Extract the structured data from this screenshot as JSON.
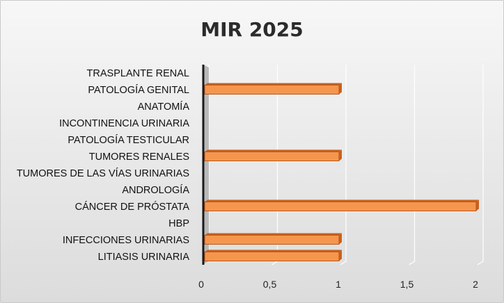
{
  "chart_data": {
    "type": "bar",
    "orientation": "horizontal",
    "title": "MIR 2025",
    "categories": [
      "LITIASIS URINARIA",
      "INFECCIONES URINARIAS",
      "HBP",
      "CÁNCER DE PRÓSTATA",
      "ANDROLOGÍA",
      "TUMORES DE LAS VÍAS URINARIAS",
      "TUMORES RENALES",
      "PATOLOGÍA TESTICULAR",
      "INCONTINENCIA URINARIA",
      "ANATOMÍA",
      "PATOLOGÍA GENITAL",
      "TRASPLANTE RENAL"
    ],
    "values": [
      1,
      1,
      0,
      2,
      0,
      0,
      1,
      0,
      0,
      0,
      1,
      0
    ],
    "x_ticks": [
      "0",
      "0,5",
      "1",
      "1,5",
      "2"
    ],
    "xlim": [
      0,
      2
    ],
    "grid": true,
    "legend": "none",
    "colors": {
      "bar": "#f5964f",
      "bar_dark": "#c9611d",
      "bar_edge": "#b8571a",
      "wall": "#8c8c8c",
      "grid": "#ffffff"
    }
  }
}
